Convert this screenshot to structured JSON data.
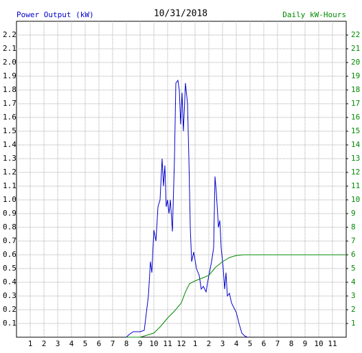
{
  "chart_data": {
    "type": "line",
    "title": "10/31/2018",
    "y_label": "Power Output (kW)",
    "y2_label": "Daily kW-Hours",
    "xlim": [
      0,
      24
    ],
    "xticks": [
      1,
      2,
      3,
      4,
      5,
      6,
      7,
      8,
      9,
      10,
      11,
      12,
      {
        "value": 13,
        "label": "1"
      },
      {
        "value": 14,
        "label": "2"
      },
      {
        "value": 15,
        "label": "3"
      },
      {
        "value": 16,
        "label": "4"
      },
      {
        "value": 17,
        "label": "5"
      },
      {
        "value": 18,
        "label": "6"
      },
      {
        "value": 19,
        "label": "7"
      },
      {
        "value": 20,
        "label": "8"
      },
      {
        "value": 21,
        "label": "9"
      },
      {
        "value": 22,
        "label": "10"
      },
      {
        "value": 23,
        "label": "11"
      }
    ],
    "ylim": [
      0,
      2.3
    ],
    "yticks": [
      0.1,
      0.2,
      0.3,
      0.4,
      0.5,
      0.6,
      0.7,
      0.8,
      0.9,
      {
        "value": 1,
        "label": "1.0"
      },
      1.1,
      1.2,
      1.3,
      1.4,
      1.5,
      1.6,
      1.7,
      1.8,
      1.9,
      {
        "value": 2,
        "label": "2.0"
      },
      2.1,
      2.2
    ],
    "y2lim": [
      0,
      23
    ],
    "y2ticks": [
      1,
      2,
      3,
      4,
      5,
      6,
      7,
      8,
      9,
      10,
      11,
      12,
      13,
      14,
      15,
      16,
      17,
      18,
      19,
      20,
      21,
      22
    ],
    "grid": true,
    "series": [
      {
        "name": "Power Output (kW)",
        "color": "#0000cc",
        "x": [
          8.0,
          8.2,
          8.5,
          9.0,
          9.3,
          9.6,
          9.75,
          9.85,
          10.0,
          10.15,
          10.3,
          10.45,
          10.6,
          10.7,
          10.8,
          10.9,
          11.0,
          11.1,
          11.2,
          11.35,
          11.5,
          11.6,
          11.75,
          11.85,
          11.95,
          12.05,
          12.15,
          12.3,
          12.45,
          12.55,
          12.65,
          12.75,
          12.9,
          13.1,
          13.3,
          13.45,
          13.6,
          13.8,
          14.0,
          14.2,
          14.35,
          14.45,
          14.55,
          14.7,
          14.8,
          14.9,
          15.05,
          15.15,
          15.25,
          15.35,
          15.5,
          15.65,
          15.8,
          16.0,
          16.2,
          16.4,
          16.6,
          16.8
        ],
        "values": [
          0,
          0.02,
          0.04,
          0.04,
          0.05,
          0.3,
          0.55,
          0.47,
          0.78,
          0.7,
          0.95,
          1.0,
          1.3,
          1.1,
          1.25,
          0.95,
          1.0,
          0.9,
          1.0,
          0.77,
          1.3,
          1.85,
          1.87,
          1.8,
          1.55,
          1.78,
          1.5,
          1.85,
          1.7,
          1.3,
          0.8,
          0.55,
          0.62,
          0.5,
          0.45,
          0.35,
          0.37,
          0.33,
          0.45,
          0.55,
          0.65,
          1.17,
          1.05,
          0.8,
          0.85,
          0.65,
          0.5,
          0.35,
          0.47,
          0.3,
          0.32,
          0.25,
          0.22,
          0.18,
          0.1,
          0.03,
          0.01,
          0
        ]
      },
      {
        "name": "Daily kW-Hours",
        "color": "#008800",
        "axis": "y2",
        "x": [
          8,
          9,
          10,
          10.5,
          11,
          11.5,
          12,
          12.3,
          12.6,
          13,
          13.5,
          14,
          14.5,
          15,
          15.5,
          16,
          16.5,
          24
        ],
        "values": [
          0,
          0,
          0.3,
          0.8,
          1.4,
          1.9,
          2.5,
          3.3,
          3.9,
          4.1,
          4.3,
          4.5,
          5.1,
          5.5,
          5.8,
          5.95,
          6,
          6
        ]
      }
    ]
  }
}
